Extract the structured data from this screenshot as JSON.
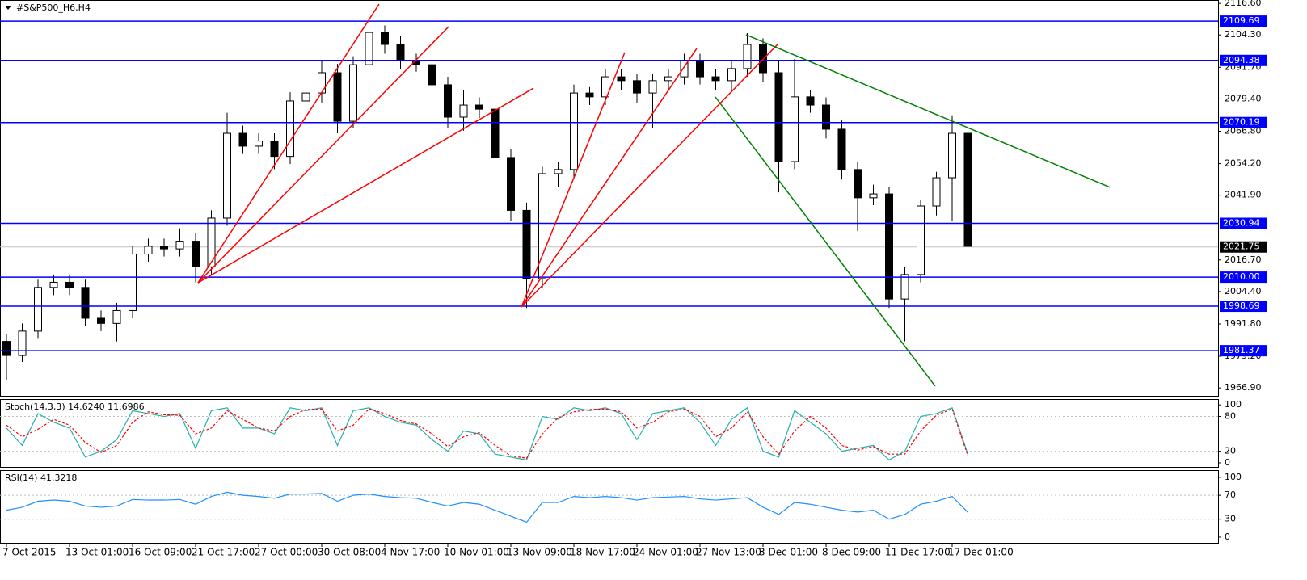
{
  "chart_data": [
    {
      "type": "candlestick",
      "title": "#S&P500_H6,H4",
      "ylim": [
        1963.8,
        2117.9
      ],
      "yticks": [
        {
          "value": 2116.6,
          "label": "2116.60"
        },
        {
          "value": 2104.3,
          "label": "2104.30"
        },
        {
          "value": 2091.7,
          "label": "2091.70"
        },
        {
          "value": 2079.4,
          "label": "2079.40"
        },
        {
          "value": 2066.8,
          "label": "2066.80"
        },
        {
          "value": 2054.2,
          "label": "2054.20"
        },
        {
          "value": 2041.9,
          "label": "2041.90"
        },
        {
          "value": 2016.7,
          "label": "2016.70"
        },
        {
          "value": 2004.4,
          "label": "2004.40"
        },
        {
          "value": 1991.8,
          "label": "1991.80"
        },
        {
          "value": 1979.2,
          "label": "1979.20"
        },
        {
          "value": 1966.9,
          "label": "1966.90"
        }
      ],
      "xticks": [
        {
          "value": 0,
          "label": "7 Oct 2015"
        },
        {
          "value": 4,
          "label": "13 Oct 01:00"
        },
        {
          "value": 8,
          "label": "16 Oct 09:00"
        },
        {
          "value": 12,
          "label": "21 Oct 17:00"
        },
        {
          "value": 16,
          "label": "27 Oct 00:00"
        },
        {
          "value": 20,
          "label": "30 Oct 08:00"
        },
        {
          "value": 24,
          "label": "4 Nov 17:00"
        },
        {
          "value": 28,
          "label": "10 Nov 01:00"
        },
        {
          "value": 32,
          "label": "13 Nov 09:00"
        },
        {
          "value": 36,
          "label": "18 Nov 17:00"
        },
        {
          "value": 40,
          "label": "24 Nov 01:00"
        },
        {
          "value": 44,
          "label": "27 Nov 13:00"
        },
        {
          "value": 48,
          "label": "3 Dec 01:00"
        },
        {
          "value": 52,
          "label": "8 Dec 09:00"
        },
        {
          "value": 56,
          "label": "11 Dec 17:00"
        },
        {
          "value": 60,
          "label": "17 Dec 01:00"
        }
      ],
      "open": [
        1985,
        1979.5,
        1989,
        2006,
        2008,
        2006,
        1994,
        1992,
        1997,
        2019,
        2022,
        2021,
        2024,
        2014,
        2033,
        2066,
        2061,
        2063,
        2057,
        2078.6,
        2081.7,
        2089.6,
        2070.7,
        2092.7,
        2105.3,
        2100.6,
        2094.3,
        2092.7,
        2084.9,
        2072.3,
        2077,
        2075.4,
        2056.6,
        2036,
        2009.4,
        2050.3,
        2051.9,
        2081.7,
        2080.2,
        2088,
        2086.5,
        2081.7,
        2086.5,
        2088,
        2094.3,
        2088,
        2086.5,
        2091.2,
        2100.6,
        2089.6,
        2055,
        2080.2,
        2077,
        2067.6,
        2051.9,
        2040.9,
        2042.4,
        2001.5,
        2011,
        2037.7,
        2048.7,
        2066
      ],
      "high": [
        1988,
        1992,
        2009,
        2011,
        2011,
        2009,
        1997,
        2000,
        2022,
        2025,
        2025,
        2029,
        2027,
        2036,
        2074,
        2069,
        2066,
        2066,
        2082,
        2085,
        2094,
        2093,
        2096,
        2109,
        2108,
        2104,
        2097,
        2095,
        2088,
        2083,
        2080,
        2078,
        2060,
        2039,
        2053,
        2055,
        2085,
        2084,
        2091,
        2091,
        2089,
        2089,
        2091,
        2097,
        2097,
        2091,
        2094,
        2105,
        2103,
        2094,
        2095,
        2083,
        2080,
        2071,
        2055,
        2046,
        2045,
        2014,
        2040,
        2051,
        2073,
        2068
      ],
      "low": [
        1970,
        1977,
        1986,
        2003,
        2003,
        1991,
        1989,
        1985,
        1994,
        2016,
        2018,
        2018,
        2008,
        2011,
        2030,
        2058,
        2058,
        2052,
        2054,
        2075,
        2078,
        2066,
        2068,
        2089,
        2097,
        2091,
        2090,
        2082,
        2068,
        2067,
        2072,
        2053,
        2032,
        1998,
        2006,
        2045,
        2049,
        2077,
        2077,
        2083,
        2078,
        2068,
        2083,
        2085,
        2085,
        2083,
        2083,
        2088,
        2086,
        2043,
        2052,
        2074,
        2064,
        2048,
        2028,
        2038,
        1998,
        1985,
        2008,
        2034,
        2032,
        2013
      ],
      "close": [
        1979.5,
        1989,
        2006,
        2008,
        2006,
        1994,
        1992,
        1997,
        2019,
        2022,
        2021,
        2024,
        2014,
        2033,
        2066,
        2061,
        2063,
        2057,
        2078.6,
        2081.7,
        2089.6,
        2070.7,
        2092.7,
        2105.3,
        2100.6,
        2094.3,
        2092.7,
        2084.9,
        2072.3,
        2077,
        2075.4,
        2056.6,
        2036,
        2009.4,
        2050.3,
        2051.9,
        2081.7,
        2080.2,
        2088,
        2086.5,
        2081.7,
        2086.5,
        2088,
        2094.3,
        2088,
        2086.5,
        2091.2,
        2100.6,
        2089.6,
        2055,
        2080.2,
        2077,
        2067.6,
        2051.9,
        2040.9,
        2042.4,
        2001.5,
        2011,
        2037.7,
        2048.7,
        2066,
        2022
      ],
      "levels": [
        2109.69,
        2094.38,
        2070.19,
        2030.94,
        {
          "value": 2010,
          "label": "2010.00"
        },
        1998.69,
        1981.37
      ],
      "level_color": "#0000ff",
      "current_price": 2021.75,
      "lines": [
        {
          "color": "#ff0000",
          "x": [
            12.15,
            23.64
          ],
          "y": [
            2007.8,
            2116.3
          ]
        },
        {
          "color": "#ff0000",
          "x": [
            12.15,
            28.05
          ],
          "y": [
            2007.8,
            2107.5
          ]
        },
        {
          "color": "#ff0000",
          "x": [
            12.15,
            33.44
          ],
          "y": [
            2007.8,
            2083.6
          ]
        },
        {
          "color": "#ff0000",
          "x": [
            32.67,
            39.23
          ],
          "y": [
            1998.4,
            2097.5
          ]
        },
        {
          "color": "#ff0000",
          "x": [
            32.67,
            43.79
          ],
          "y": [
            1998.4,
            2099
          ]
        },
        {
          "color": "#ff0000",
          "x": [
            32.67,
            48.92
          ],
          "y": [
            1998.4,
            2100.6
          ]
        },
        {
          "color": "#008000",
          "x": [
            46.92,
            70
          ],
          "y": [
            2104.4,
            2045
          ]
        },
        {
          "color": "#008000",
          "x": [
            44.97,
            58.92
          ],
          "y": [
            2080.2,
            1967.6
          ]
        }
      ]
    },
    {
      "type": "line",
      "title": "Stoch(14,3,3) 14.6240 11.6986",
      "ylim": [
        -7,
        110
      ],
      "yticks": [
        100,
        80,
        20,
        0
      ],
      "levels": [
        80,
        20
      ],
      "series": [
        {
          "color": "#20b2aa",
          "values": [
            60,
            30,
            85,
            70,
            60,
            10,
            20,
            40,
            90,
            85,
            80,
            85,
            25,
            90,
            95,
            60,
            60,
            50,
            95,
            90,
            95,
            30,
            90,
            95,
            80,
            70,
            65,
            40,
            20,
            55,
            50,
            15,
            10,
            5,
            80,
            75,
            95,
            90,
            95,
            85,
            40,
            85,
            90,
            95,
            70,
            30,
            75,
            95,
            20,
            10,
            90,
            70,
            50,
            20,
            25,
            30,
            5,
            20,
            80,
            85,
            95,
            14.624
          ]
        },
        {
          "color": "#ff0000",
          "dashed": true,
          "values": [
            65,
            45,
            58,
            75,
            65,
            35,
            18,
            30,
            70,
            88,
            83,
            82,
            50,
            60,
            90,
            75,
            60,
            55,
            80,
            92,
            93,
            55,
            65,
            93,
            85,
            73,
            67,
            50,
            28,
            45,
            52,
            30,
            12,
            8,
            50,
            78,
            88,
            92,
            93,
            88,
            60,
            70,
            88,
            93,
            80,
            45,
            60,
            88,
            45,
            15,
            55,
            80,
            60,
            30,
            22,
            28,
            15,
            15,
            55,
            82,
            93,
            11.6986
          ]
        }
      ]
    },
    {
      "type": "line",
      "title": "RSI(14) 41.3218",
      "ylim": [
        -9.5,
        112
      ],
      "yticks": [
        100,
        70,
        30,
        0
      ],
      "levels": [
        70,
        30
      ],
      "series": [
        {
          "color": "#1e90ff",
          "values": [
            45,
            50,
            60,
            62,
            60,
            52,
            50,
            52,
            63,
            62,
            62,
            63,
            55,
            68,
            75,
            70,
            68,
            65,
            72,
            72,
            73,
            60,
            70,
            72,
            68,
            66,
            65,
            58,
            52,
            58,
            55,
            45,
            35,
            25,
            58,
            58,
            68,
            66,
            68,
            66,
            62,
            66,
            67,
            68,
            64,
            62,
            64,
            66,
            50,
            38,
            58,
            55,
            50,
            45,
            42,
            45,
            30,
            38,
            55,
            60,
            68,
            41.3218
          ]
        }
      ]
    }
  ]
}
